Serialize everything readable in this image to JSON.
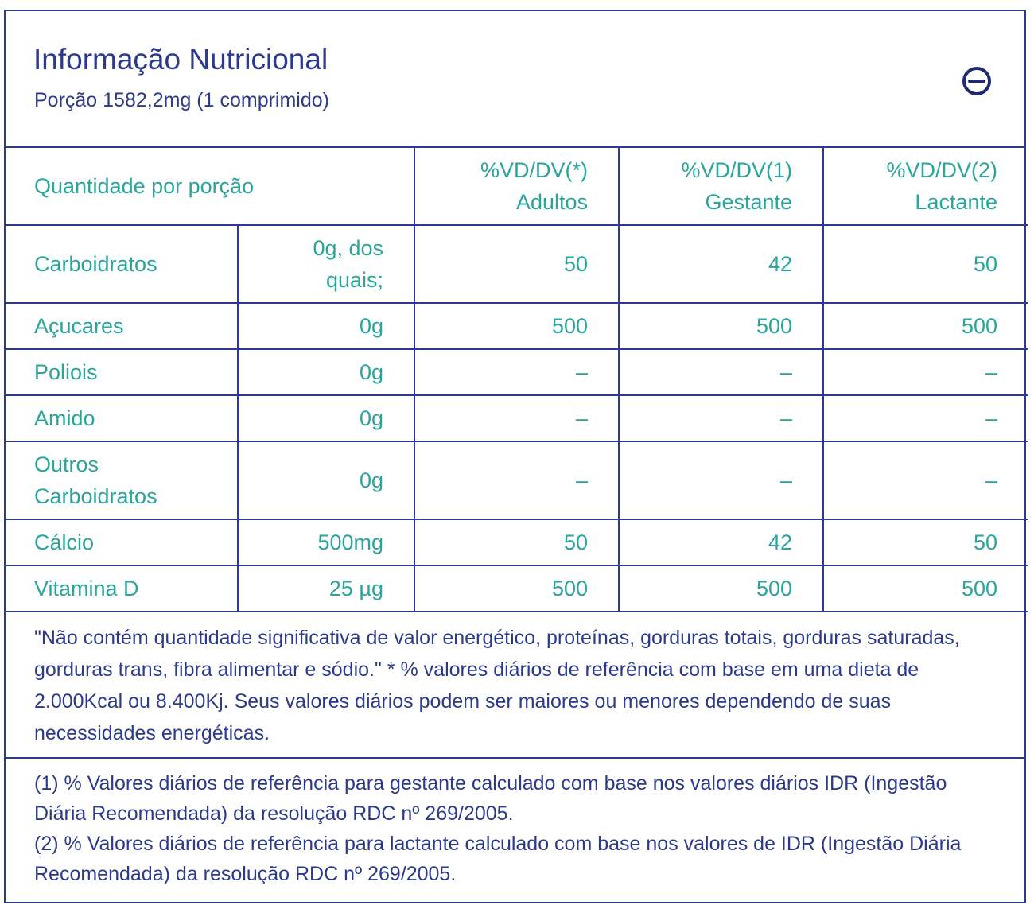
{
  "header": {
    "title": "Informação Nutricional",
    "subtitle": "Porção 1582,2mg (1 comprimido)",
    "collapse_icon": "minus-circle-icon"
  },
  "table": {
    "headers": [
      "Quantidade por porção",
      "%VD/DV(*)\nAdultos",
      "%VD/DV(1)\nGestante",
      "%VD/DV(2)\nLactante"
    ],
    "rows": [
      {
        "name": "Carboidratos",
        "amount": "0g, dos quais;",
        "adultos": "50",
        "gestante": "42",
        "lactante": "50"
      },
      {
        "name": "Açucares",
        "amount": "0g",
        "adultos": "500",
        "gestante": "500",
        "lactante": "500"
      },
      {
        "name": "Poliois",
        "amount": "0g",
        "adultos": "–",
        "gestante": "–",
        "lactante": "–"
      },
      {
        "name": "Amido",
        "amount": "0g",
        "adultos": "–",
        "gestante": "–",
        "lactante": "–"
      },
      {
        "name": "Outros Carboidratos",
        "amount": "0g",
        "adultos": "–",
        "gestante": "–",
        "lactante": "–"
      },
      {
        "name": "Cálcio",
        "amount": "500mg",
        "adultos": "50",
        "gestante": "42",
        "lactante": "50"
      },
      {
        "name": "Vitamina D",
        "amount": "25 µg",
        "adultos": "500",
        "gestante": "500",
        "lactante": "500"
      }
    ]
  },
  "notes": {
    "disclaimer": "\"Não contém quantidade significativa de valor energético, proteínas, gorduras totais, gorduras saturadas, gorduras trans, fibra alimentar e sódio.\" * % valores diários de referência com base em uma dieta de 2.000Kcal ou 8.400Kj. Seus valores diários podem ser maiores ou menores dependendo de suas necessidades energéticas.",
    "footnote_1": "(1) % Valores diários de referência para gestante calculado com base nos valores diários IDR (Ingestão Diária Recomendada) da resolução RDC nº 269/2005.",
    "footnote_2": "(2) % Valores diários de referência para lactante calculado com base nos valores de IDR (Ingestão Diária Recomendada) da resolução RDC nº 269/2005."
  },
  "colors": {
    "border": "#2c3a8c",
    "accent": "#2aa59b"
  }
}
